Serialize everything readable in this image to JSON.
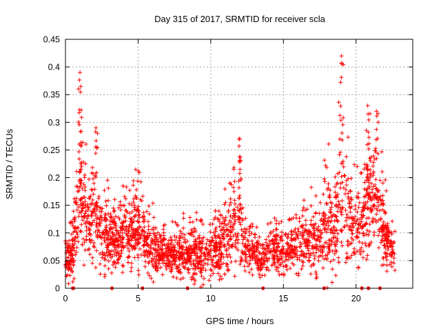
{
  "chart_data": {
    "type": "scatter",
    "marker": "+",
    "color": "#ff0000",
    "title": "Day 315 of 2017, SRMTID for receiver scla",
    "xlabel": "GPS time / hours",
    "ylabel": "SRMTID / TECUs",
    "xlim": [
      0,
      23.9
    ],
    "ylim": [
      0,
      0.45
    ],
    "grid": true,
    "xticks": [
      0,
      5,
      10,
      15,
      20
    ],
    "xtick_labels": [
      "0",
      "5",
      "10",
      "15",
      "20"
    ],
    "yticks": [
      0,
      0.05,
      0.1,
      0.15,
      0.2,
      0.25,
      0.3,
      0.35,
      0.4,
      0.45
    ],
    "ytick_labels": [
      "0",
      "0.05",
      "0.1",
      "0.15",
      "0.2",
      "0.25",
      "0.3",
      "0.35",
      "0.4",
      "0.45"
    ],
    "envelope": {
      "description": "approximate per-interval range of SRMTID values (hours, min TECU, max TECU)",
      "x": [
        0.0,
        0.5,
        1.0,
        1.5,
        2.0,
        2.5,
        3.0,
        3.5,
        4.0,
        4.5,
        5.0,
        5.5,
        6.0,
        6.5,
        7.0,
        7.5,
        8.0,
        8.5,
        9.0,
        9.5,
        10.0,
        10.5,
        11.0,
        11.5,
        12.0,
        12.5,
        13.0,
        13.5,
        14.0,
        14.5,
        15.0,
        15.5,
        16.0,
        16.5,
        17.0,
        17.5,
        18.0,
        18.5,
        19.0,
        19.5,
        20.0,
        20.5,
        21.0,
        21.5,
        22.0,
        22.5
      ],
      "low": [
        0.01,
        0.005,
        0.03,
        0.02,
        0.04,
        0.02,
        0.02,
        0.03,
        0.02,
        0.03,
        0.02,
        0.03,
        0.01,
        0.02,
        0.01,
        0.02,
        0.01,
        0.02,
        0.0,
        0.0,
        0.01,
        0.01,
        0.02,
        0.01,
        0.02,
        0.02,
        0.02,
        0.01,
        0.03,
        0.01,
        0.02,
        0.03,
        0.02,
        0.03,
        0.01,
        0.02,
        0.0,
        0.0,
        0.02,
        0.03,
        0.03,
        0.04,
        0.05,
        0.03,
        0.03,
        0.02
      ],
      "high": [
        0.13,
        0.12,
        0.39,
        0.24,
        0.29,
        0.2,
        0.2,
        0.16,
        0.21,
        0.19,
        0.24,
        0.14,
        0.16,
        0.12,
        0.13,
        0.12,
        0.14,
        0.13,
        0.16,
        0.15,
        0.16,
        0.15,
        0.2,
        0.24,
        0.27,
        0.13,
        0.12,
        0.11,
        0.12,
        0.15,
        0.13,
        0.13,
        0.17,
        0.16,
        0.19,
        0.17,
        0.28,
        0.23,
        0.42,
        0.26,
        0.22,
        0.25,
        0.33,
        0.32,
        0.2,
        0.12
      ],
      "data_end_hours": 22.7
    },
    "spikes": [
      {
        "x": 1.0,
        "y": 0.39
      },
      {
        "x": 2.1,
        "y": 0.29
      },
      {
        "x": 12.0,
        "y": 0.27
      },
      {
        "x": 19.0,
        "y": 0.42
      },
      {
        "x": 20.8,
        "y": 0.33
      },
      {
        "x": 21.4,
        "y": 0.32
      }
    ],
    "data_gaps_hours": [
      0.5,
      0.55,
      3.2,
      5.3,
      8.4,
      13.6,
      17.8,
      20.4,
      20.85,
      21.65
    ]
  }
}
